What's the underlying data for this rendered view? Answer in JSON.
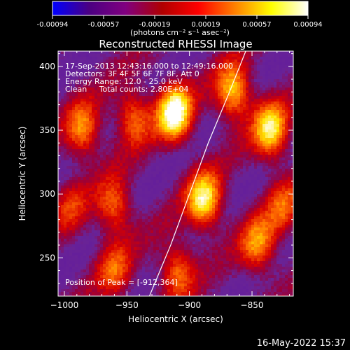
{
  "chart_data": {
    "type": "heatmap",
    "title": "Reconstructed RHESSI Image",
    "xlabel": "Heliocentric X (arcsec)",
    "ylabel": "Heliocentric Y (arcsec)",
    "xlim": [
      -1005,
      -817
    ],
    "ylim": [
      220,
      412
    ],
    "xticks": [
      -1000,
      -950,
      -900,
      -850
    ],
    "yticks": [
      250,
      300,
      350,
      400
    ],
    "colorbar": {
      "label": "(photons cm⁻² s⁻¹ asec⁻²)",
      "range": [
        -0.00094,
        0.00094
      ],
      "ticks": [
        "-0.00094",
        "-0.00057",
        "-0.00019",
        "0.00019",
        "0.00057",
        "0.00094"
      ],
      "colors": [
        "#0000ff",
        "#4b0082",
        "#800080",
        "#b00000",
        "#ff0000",
        "#ff8000",
        "#ffff00",
        "#ffffff"
      ]
    },
    "annotations": [
      "17-Sep-2013 12:43:16.000 to 12:49:16.000",
      "Detectors: 3F 4F 5F 6F 7F 8F, Att 0",
      "Energy Range: 12.0 - 25.0 keV",
      "Clean     Total counts: 2.80E+04"
    ],
    "peak_label": "Position of Peak = [-912,364]",
    "peak": [
      -912,
      364
    ],
    "limb_curve": [
      [
        -932,
        220
      ],
      [
        -915,
        260
      ],
      [
        -900,
        300
      ],
      [
        -885,
        340
      ],
      [
        -868,
        380
      ],
      [
        -855,
        412
      ]
    ],
    "hot_spots": [
      {
        "x": -912,
        "y": 364,
        "value": 0.00094
      },
      {
        "x": -888,
        "y": 295,
        "value": 0.0008
      },
      {
        "x": -835,
        "y": 350,
        "value": 0.00075
      },
      {
        "x": -865,
        "y": 380,
        "value": 0.0007
      },
      {
        "x": -985,
        "y": 350,
        "value": 0.00055
      },
      {
        "x": -945,
        "y": 360,
        "value": 0.0005
      },
      {
        "x": -960,
        "y": 290,
        "value": 0.0005
      },
      {
        "x": -845,
        "y": 260,
        "value": 0.00055
      },
      {
        "x": -910,
        "y": 240,
        "value": 0.0005
      },
      {
        "x": -960,
        "y": 240,
        "value": 0.0004
      },
      {
        "x": -825,
        "y": 290,
        "value": 0.0004
      },
      {
        "x": -995,
        "y": 290,
        "value": 0.0003
      }
    ]
  },
  "footer": {
    "date": "16-May-2022 15:37"
  }
}
